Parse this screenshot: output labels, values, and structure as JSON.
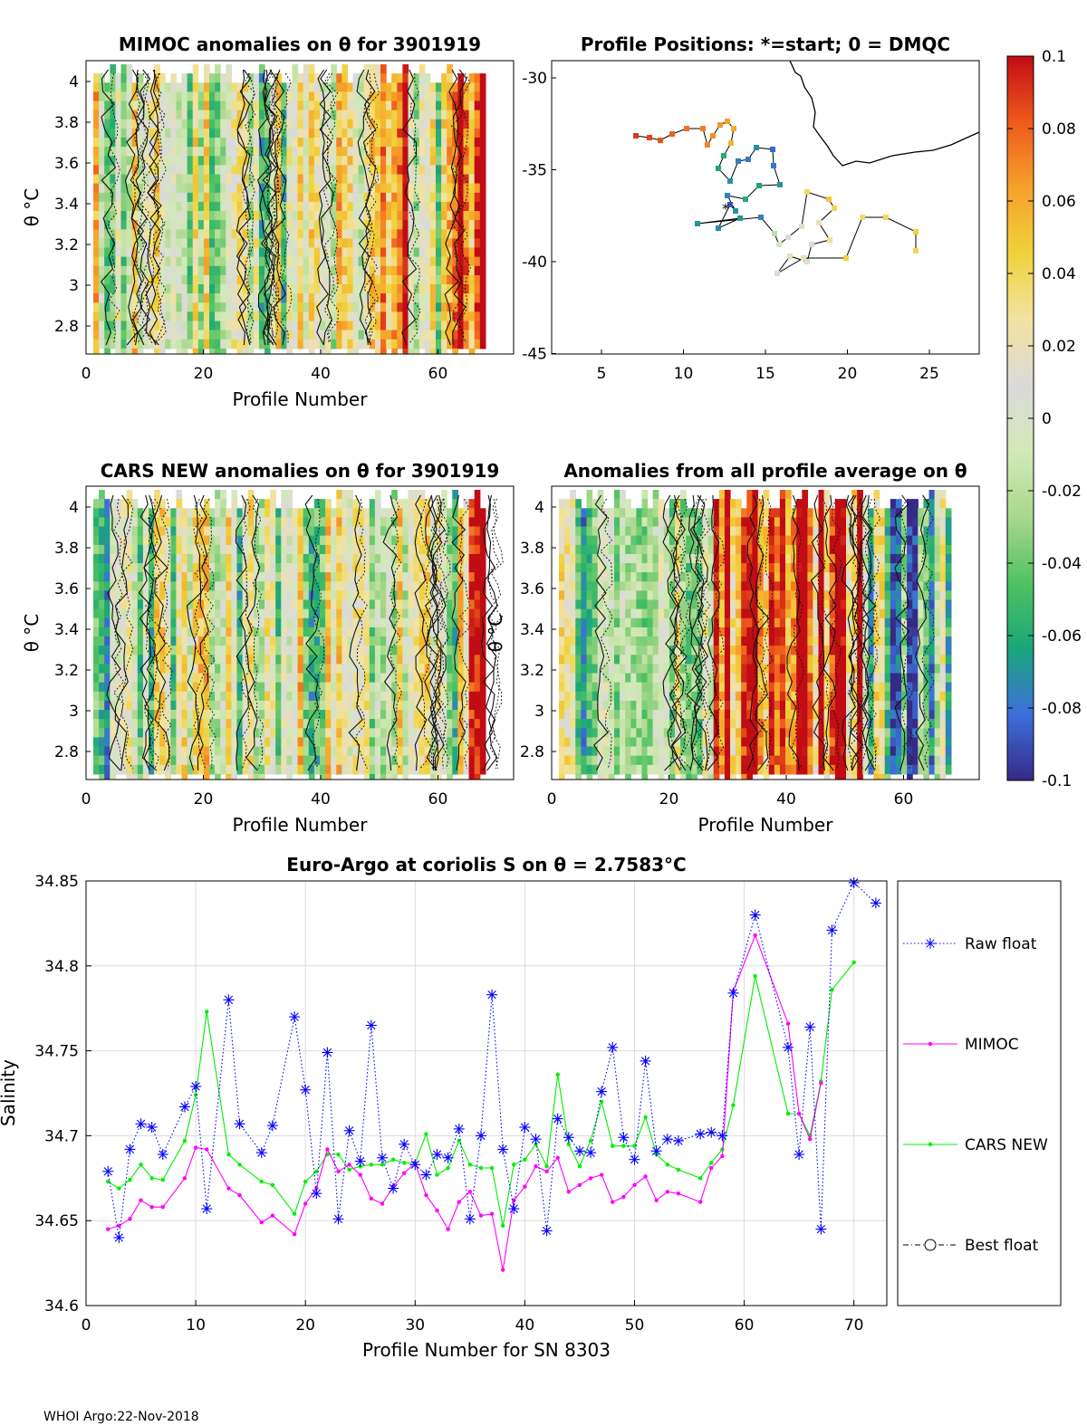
{
  "footer": "WHOI Argo:22-Nov-2018",
  "colormap": {
    "stops": [
      "#352a87",
      "#3d6fdb",
      "#1aa67a",
      "#4fc262",
      "#a8d88c",
      "#d4e9b8",
      "#dadada",
      "#f2e3a0",
      "#f0d23b",
      "#f6a12a",
      "#ef5a1c",
      "#c10c14"
    ],
    "tick_labels": [
      "0.1",
      "0.08",
      "0.06",
      "0.04",
      "0.02",
      "0",
      "-0.02",
      "-0.04",
      "-0.06",
      "-0.08",
      "-0.1"
    ],
    "range": [
      -0.1,
      0.1
    ]
  },
  "panels": {
    "mimoc": {
      "title": "MIMOC anomalies on θ  for 3901919",
      "xlabel": "Profile Number",
      "ylabel": "θ °C",
      "xticks": [
        "0",
        "20",
        "40",
        "60"
      ],
      "yticks": [
        "4",
        "3.8",
        "3.6",
        "3.4",
        "3.2",
        "3",
        "2.8"
      ]
    },
    "positions": {
      "title": "Profile Positions: *=start; 0 = DMQC",
      "xticks": [
        "5",
        "10",
        "15",
        "20",
        "25"
      ],
      "yticks": [
        "-30",
        "-35",
        "-40",
        "-45"
      ]
    },
    "cars": {
      "title": "CARS NEW anomalies on θ for 3901919",
      "xlabel": "Profile Number",
      "ylabel": "θ °C",
      "xticks": [
        "0",
        "20",
        "40",
        "60"
      ],
      "yticks": [
        "4",
        "3.8",
        "3.6",
        "3.4",
        "3.2",
        "3",
        "2.8"
      ]
    },
    "allavg": {
      "title": "Anomalies from all profile average on θ",
      "xlabel": "Profile Number",
      "ylabel": "θ °C",
      "xticks": [
        "0",
        "20",
        "40",
        "60"
      ],
      "yticks": [
        "4",
        "3.8",
        "3.6",
        "3.4",
        "3.2",
        "3",
        "2.8"
      ]
    }
  },
  "chart_data": {
    "type": "line",
    "title": "Euro-Argo at coriolis S on θ = 2.7583°C",
    "xlabel": "Profile Number for SN 8303",
    "ylabel": "Salinity",
    "xlim": [
      0,
      73
    ],
    "ylim": [
      34.6,
      34.85
    ],
    "xticks": [
      "0",
      "10",
      "20",
      "30",
      "40",
      "50",
      "60",
      "70"
    ],
    "yticks": [
      "34.85",
      "34.8",
      "34.75",
      "34.7",
      "34.65",
      "34.6"
    ],
    "grid": true,
    "legend_position": "right",
    "series": [
      {
        "name": "Raw float",
        "color": "#0000ff",
        "style": "dotted",
        "marker": "asterisk",
        "x": [
          2,
          3,
          4,
          5,
          6,
          7,
          9,
          10,
          11,
          13,
          14,
          16,
          17,
          19,
          20,
          21,
          22,
          23,
          24,
          25,
          26,
          27,
          28,
          29,
          30,
          31,
          32,
          33,
          34,
          35,
          36,
          37,
          38,
          39,
          40,
          41,
          42,
          43,
          44,
          45,
          46,
          47,
          48,
          49,
          50,
          51,
          52,
          53,
          54,
          56,
          57,
          58,
          59,
          61,
          64,
          65,
          66,
          67,
          68,
          70,
          72
        ],
        "y": [
          34.679,
          34.64,
          34.692,
          34.707,
          34.705,
          34.689,
          34.717,
          34.729,
          34.657,
          34.78,
          34.707,
          34.69,
          34.706,
          34.77,
          34.727,
          34.666,
          34.749,
          34.651,
          34.703,
          34.685,
          34.765,
          34.687,
          34.669,
          34.695,
          34.683,
          34.677,
          34.689,
          34.687,
          34.704,
          34.651,
          34.7,
          34.783,
          34.692,
          34.657,
          34.705,
          34.698,
          34.644,
          34.71,
          34.699,
          34.691,
          34.69,
          34.726,
          34.752,
          34.699,
          34.686,
          34.744,
          34.691,
          34.698,
          34.697,
          34.701,
          34.702,
          34.7,
          34.784,
          34.83,
          34.752,
          34.689,
          34.764,
          34.645,
          34.821,
          34.849,
          34.837
        ]
      },
      {
        "name": "MIMOC",
        "color": "#ff00ff",
        "style": "solid",
        "marker": "dot",
        "x": [
          2,
          3,
          4,
          5,
          6,
          7,
          9,
          10,
          11,
          13,
          14,
          16,
          17,
          19,
          20,
          21,
          22,
          23,
          24,
          25,
          26,
          27,
          28,
          29,
          30,
          31,
          32,
          33,
          34,
          35,
          36,
          37,
          38,
          39,
          40,
          41,
          42,
          43,
          44,
          45,
          46,
          47,
          48,
          49,
          50,
          51,
          52,
          53,
          54,
          56,
          57,
          58,
          59,
          61,
          64,
          65,
          66,
          67
        ],
        "y": [
          34.645,
          34.647,
          34.651,
          34.662,
          34.658,
          34.658,
          34.675,
          34.693,
          34.692,
          34.669,
          34.665,
          34.649,
          34.653,
          34.642,
          34.66,
          34.669,
          34.692,
          34.679,
          34.683,
          34.677,
          34.663,
          34.66,
          34.67,
          34.678,
          34.684,
          34.665,
          34.656,
          34.645,
          34.661,
          34.667,
          34.653,
          34.654,
          34.621,
          34.662,
          34.67,
          34.682,
          34.679,
          34.687,
          34.667,
          34.671,
          34.675,
          34.677,
          34.661,
          34.664,
          34.671,
          34.676,
          34.662,
          34.667,
          34.666,
          34.661,
          34.681,
          34.688,
          34.785,
          34.818,
          34.766,
          34.713,
          34.698,
          34.731
        ]
      },
      {
        "name": "CARS NEW",
        "color": "#00ee00",
        "style": "solid",
        "marker": "dot",
        "x": [
          2,
          3,
          4,
          5,
          6,
          7,
          9,
          10,
          11,
          13,
          14,
          16,
          17,
          19,
          20,
          21,
          22,
          23,
          24,
          25,
          26,
          27,
          28,
          29,
          30,
          31,
          32,
          33,
          34,
          35,
          36,
          37,
          38,
          39,
          40,
          41,
          42,
          43,
          44,
          45,
          46,
          47,
          48,
          49,
          50,
          51,
          52,
          53,
          54,
          56,
          57,
          58,
          59,
          61,
          64,
          65,
          66,
          67,
          68,
          70
        ],
        "y": [
          34.673,
          34.669,
          34.674,
          34.683,
          34.675,
          34.674,
          34.697,
          34.724,
          34.773,
          34.689,
          34.683,
          34.673,
          34.671,
          34.654,
          34.673,
          34.679,
          34.689,
          34.689,
          34.68,
          34.682,
          34.683,
          34.683,
          34.686,
          34.684,
          34.684,
          34.701,
          34.677,
          34.681,
          34.697,
          34.683,
          34.681,
          34.681,
          34.647,
          34.683,
          34.686,
          34.695,
          34.682,
          34.736,
          34.695,
          34.682,
          34.697,
          34.72,
          34.694,
          34.694,
          34.694,
          34.711,
          34.689,
          34.683,
          34.68,
          34.675,
          34.684,
          34.692,
          34.718,
          34.794,
          34.713,
          34.713,
          34.7,
          34.732,
          34.786,
          34.802
        ]
      },
      {
        "name": "Best float",
        "color": "#000000",
        "style": "dashdot",
        "marker": "circle",
        "x": [],
        "y": []
      }
    ]
  }
}
